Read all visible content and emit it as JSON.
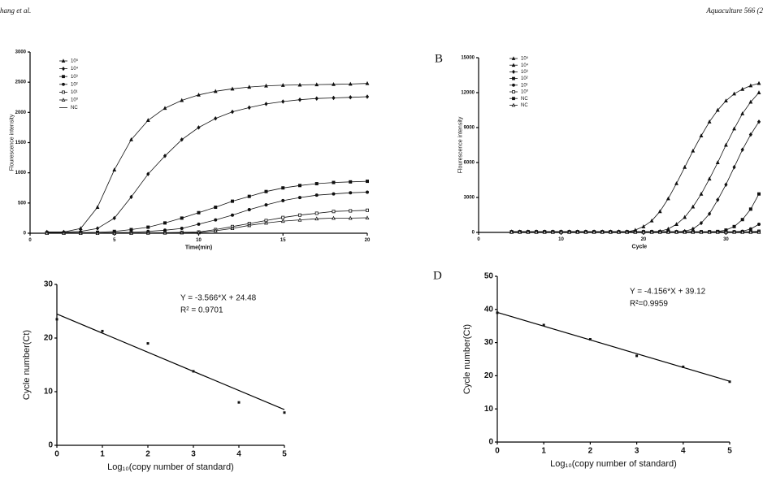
{
  "header": {
    "left": "hang et al.",
    "right": "Aquaculture 566 (2"
  },
  "chart_data": [
    {
      "type": "line",
      "xlabel": "Time(min)",
      "ylabel": "Flourescence intensity",
      "xlim": [
        0,
        20
      ],
      "xticks": [
        0,
        5,
        10,
        15,
        20
      ],
      "ylim": [
        0,
        3000
      ],
      "yticks": [
        0,
        500,
        1000,
        1500,
        2000,
        2500,
        3000
      ],
      "x": [
        1,
        2,
        3,
        4,
        5,
        6,
        7,
        8,
        9,
        10,
        11,
        12,
        13,
        14,
        15,
        16,
        17,
        18,
        19,
        20
      ],
      "series": [
        {
          "name": "10⁵",
          "marker": "triangle",
          "color": "#111",
          "values": [
            20,
            20,
            80,
            430,
            1050,
            1550,
            1870,
            2070,
            2200,
            2290,
            2350,
            2390,
            2420,
            2440,
            2450,
            2455,
            2460,
            2465,
            2470,
            2480
          ]
        },
        {
          "name": "10⁴",
          "marker": "diamond",
          "color": "#111",
          "values": [
            20,
            20,
            30,
            80,
            250,
            600,
            980,
            1280,
            1550,
            1750,
            1900,
            2010,
            2080,
            2140,
            2180,
            2210,
            2230,
            2240,
            2250,
            2260
          ]
        },
        {
          "name": "10³",
          "marker": "square",
          "color": "#111",
          "values": [
            10,
            10,
            10,
            15,
            30,
            60,
            100,
            170,
            250,
            340,
            430,
            530,
            610,
            690,
            750,
            790,
            820,
            840,
            850,
            860
          ]
        },
        {
          "name": "10²",
          "marker": "circle",
          "color": "#111",
          "values": [
            5,
            5,
            5,
            5,
            10,
            15,
            30,
            50,
            80,
            150,
            220,
            300,
            390,
            470,
            540,
            590,
            630,
            650,
            670,
            680
          ]
        },
        {
          "name": "10¹",
          "marker": "square-open",
          "color": "#111",
          "values": [
            0,
            0,
            0,
            0,
            0,
            5,
            5,
            10,
            15,
            20,
            60,
            110,
            160,
            210,
            260,
            300,
            330,
            360,
            370,
            380
          ]
        },
        {
          "name": "10⁰",
          "marker": "triangle-open",
          "color": "#111",
          "values": [
            0,
            0,
            0,
            0,
            0,
            0,
            5,
            5,
            8,
            10,
            40,
            80,
            130,
            170,
            200,
            220,
            240,
            250,
            250,
            255
          ]
        },
        {
          "name": "NC",
          "marker": "none",
          "color": "#111",
          "values": [
            0,
            0,
            0,
            0,
            0,
            0,
            0,
            0,
            0,
            0,
            0,
            0,
            0,
            0,
            0,
            0,
            0,
            0,
            0,
            0
          ]
        }
      ]
    },
    {
      "type": "line",
      "label": "B",
      "xlabel": "Cycle",
      "ylabel": "Flourescence intensity",
      "xlim": [
        0,
        34
      ],
      "xticks": [
        0,
        10,
        20,
        30
      ],
      "ylim": [
        0,
        15000
      ],
      "yticks": [
        0,
        3000,
        6000,
        9000,
        12000,
        15000
      ],
      "x": [
        4,
        5,
        6,
        7,
        8,
        9,
        10,
        11,
        12,
        13,
        14,
        15,
        16,
        17,
        18,
        19,
        20,
        21,
        22,
        23,
        24,
        25,
        26,
        27,
        28,
        29,
        30,
        31,
        32,
        33,
        34
      ],
      "series": [
        {
          "name": "10⁵",
          "marker": "triangle",
          "color": "#111",
          "values": [
            50,
            50,
            50,
            50,
            50,
            50,
            50,
            50,
            50,
            50,
            50,
            50,
            50,
            50,
            50,
            200,
            500,
            1000,
            1800,
            2900,
            4200,
            5600,
            7000,
            8300,
            9500,
            10500,
            11300,
            11900,
            12300,
            12600,
            12800
          ]
        },
        {
          "name": "10⁴",
          "marker": "triangle",
          "color": "#111",
          "values": [
            50,
            50,
            50,
            50,
            50,
            50,
            50,
            50,
            50,
            50,
            50,
            50,
            50,
            50,
            50,
            50,
            50,
            50,
            100,
            300,
            700,
            1300,
            2200,
            3300,
            4600,
            6000,
            7500,
            8900,
            10200,
            11200,
            12000
          ]
        },
        {
          "name": "10³",
          "marker": "diamond",
          "color": "#111",
          "values": [
            50,
            50,
            50,
            50,
            50,
            50,
            50,
            50,
            50,
            50,
            50,
            50,
            50,
            50,
            50,
            50,
            50,
            50,
            50,
            50,
            50,
            100,
            300,
            800,
            1600,
            2800,
            4100,
            5600,
            7100,
            8400,
            9500
          ]
        },
        {
          "name": "10²",
          "marker": "square",
          "color": "#111",
          "values": [
            50,
            50,
            50,
            50,
            50,
            50,
            50,
            50,
            50,
            50,
            50,
            50,
            50,
            50,
            50,
            50,
            50,
            50,
            50,
            50,
            50,
            50,
            50,
            50,
            50,
            80,
            200,
            500,
            1100,
            2000,
            3300
          ]
        },
        {
          "name": "10¹",
          "marker": "circle",
          "color": "#111",
          "values": [
            50,
            50,
            50,
            50,
            50,
            50,
            50,
            50,
            50,
            50,
            50,
            50,
            50,
            50,
            50,
            50,
            50,
            50,
            50,
            50,
            50,
            50,
            50,
            50,
            50,
            50,
            50,
            60,
            100,
            300,
            700
          ]
        },
        {
          "name": "10⁰",
          "marker": "square-open",
          "color": "#111",
          "values": [
            50,
            50,
            50,
            50,
            50,
            50,
            50,
            50,
            50,
            50,
            50,
            50,
            50,
            50,
            50,
            50,
            50,
            50,
            50,
            50,
            50,
            50,
            50,
            50,
            50,
            50,
            50,
            50,
            50,
            60,
            100
          ]
        },
        {
          "name": "NC",
          "marker": "square",
          "color": "#111",
          "values": [
            30,
            30,
            30,
            30,
            30,
            30,
            30,
            30,
            30,
            30,
            30,
            30,
            30,
            30,
            30,
            30,
            30,
            30,
            30,
            30,
            30,
            30,
            30,
            30,
            30,
            30,
            30,
            30,
            30,
            30,
            30
          ]
        },
        {
          "name": "NC",
          "marker": "triangle-open",
          "color": "#111",
          "values": [
            30,
            30,
            30,
            30,
            30,
            30,
            30,
            30,
            30,
            30,
            30,
            30,
            30,
            30,
            30,
            30,
            30,
            30,
            30,
            30,
            30,
            30,
            30,
            30,
            30,
            30,
            30,
            30,
            30,
            30,
            30
          ]
        }
      ]
    },
    {
      "type": "scatter",
      "xlabel": "Log₁₀(copy number of standard)",
      "ylabel": "Cycle number(Ct)",
      "equation": "Y = -3.566*X + 24.48",
      "r2": "R² = 0.9701",
      "xlim": [
        0,
        5
      ],
      "xticks": [
        0,
        1,
        2,
        3,
        4,
        5
      ],
      "ylim": [
        0,
        30
      ],
      "yticks": [
        0,
        10,
        20,
        30
      ],
      "x": [
        0,
        1,
        2,
        3,
        4,
        5
      ],
      "values": [
        23.5,
        21.3,
        19,
        13.8,
        8,
        6.1
      ],
      "fit": {
        "x": [
          0,
          5
        ],
        "values": [
          24.48,
          6.65
        ]
      }
    },
    {
      "type": "scatter",
      "label": "D",
      "xlabel": "Log₁₀(copy number of standard)",
      "ylabel": "Cycle number(Ct)",
      "equation": "Y = -4.156*X + 39.12",
      "r2": "R²=0.9959",
      "xlim": [
        0,
        5
      ],
      "xticks": [
        0,
        1,
        2,
        3,
        4,
        5
      ],
      "ylim": [
        0,
        50
      ],
      "yticks": [
        0,
        10,
        20,
        30,
        40,
        50
      ],
      "x": [
        0,
        1,
        2,
        3,
        4,
        5
      ],
      "values": [
        39,
        35.3,
        31,
        26,
        22.7,
        18.2
      ],
      "fit": {
        "x": [
          0,
          5
        ],
        "values": [
          39.12,
          18.34
        ]
      }
    }
  ]
}
